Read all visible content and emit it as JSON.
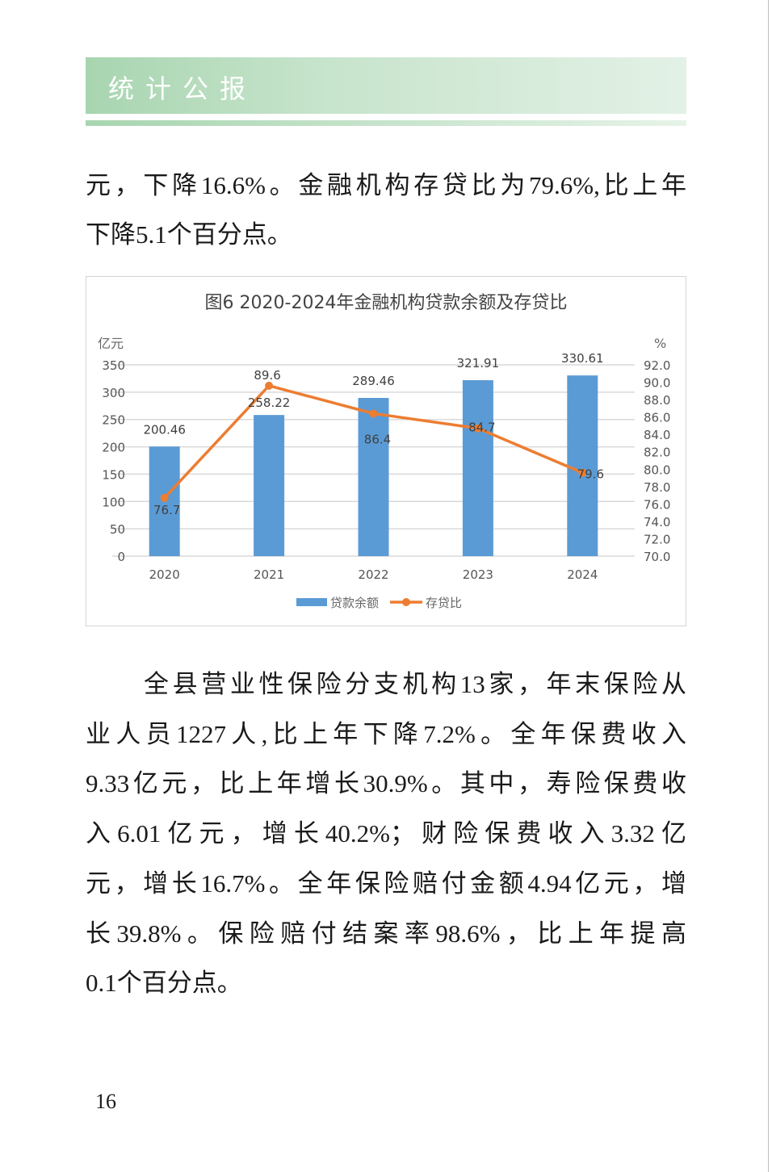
{
  "header": {
    "title": "统计公报"
  },
  "paragraph1": {
    "lines": [
      "元，下降16.6%。金融机构存贷比为79.6%,比上年",
      "下降5.1个百分点。"
    ]
  },
  "paragraph2": {
    "lines": [
      "全县营业性保险分支机构13家，年末保险从",
      "业人员1227人,比上年下降7.2%。全年保费收入",
      "9.33亿元，比上年增长30.9%。其中，寿险保费收",
      "入6.01亿元，增长40.2%；财险保费收入3.32亿",
      "元，增长16.7%。全年保险赔付金额4.94亿元，增",
      "长39.8%。保险赔付结案率98.6%，比上年提高",
      "0.1个百分点。"
    ]
  },
  "page_number": "16",
  "chart_data": {
    "type": "bar+line",
    "title": "图6 2020-2024年金融机构贷款余额及存贷比",
    "categories": [
      "2020",
      "2021",
      "2022",
      "2023",
      "2024"
    ],
    "y_left": {
      "label": "亿元",
      "range": [
        0,
        350
      ],
      "ticks": [
        "0",
        "50",
        "100",
        "150",
        "200",
        "250",
        "300",
        "350"
      ]
    },
    "y_right": {
      "label": "%",
      "range": [
        70,
        92
      ],
      "ticks": [
        "70.0",
        "72.0",
        "74.0",
        "76.0",
        "78.0",
        "80.0",
        "82.0",
        "84.0",
        "86.0",
        "88.0",
        "90.0",
        "92.0"
      ]
    },
    "series": [
      {
        "name": "贷款余额",
        "type": "bar",
        "axis": "left",
        "color": "#5b9bd5",
        "values": [
          200.46,
          258.22,
          289.46,
          321.91,
          330.61
        ],
        "labels": [
          "200.46",
          "258.22",
          "289.46",
          "321.91",
          "330.61"
        ]
      },
      {
        "name": "存贷比",
        "type": "line",
        "axis": "right",
        "color": "#ed7d31",
        "values": [
          76.7,
          89.6,
          86.4,
          84.7,
          79.6
        ],
        "labels": [
          "76.7",
          "89.6",
          "86.4",
          "84.7",
          "79.6"
        ]
      }
    ],
    "grid": true,
    "legend": "bottom"
  }
}
